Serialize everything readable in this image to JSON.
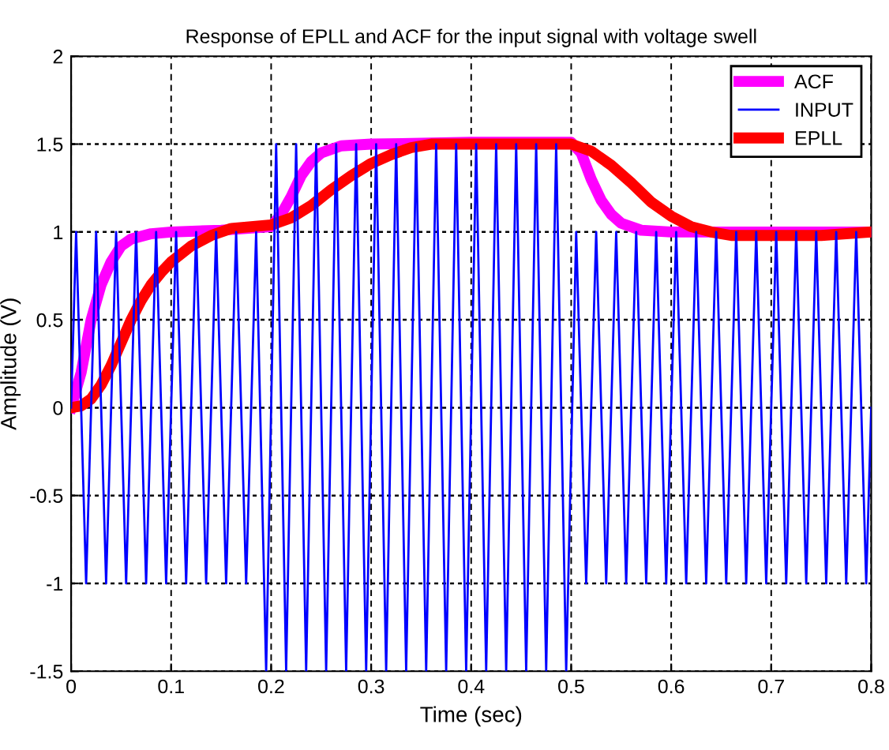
{
  "chart_data": {
    "type": "line",
    "title": "Response of EPLL and ACF for the input signal with voltage swell",
    "xlabel": "Time (sec)",
    "ylabel": "Amplitude (V)",
    "xlim": [
      0,
      0.8
    ],
    "ylim": [
      -1.5,
      2
    ],
    "xticks": [
      0,
      0.1,
      0.2,
      0.3,
      0.4,
      0.5,
      0.6,
      0.7,
      0.8
    ],
    "yticks": [
      -1.5,
      -1,
      -0.5,
      0,
      0.5,
      1,
      1.5,
      2
    ],
    "grid": true,
    "legend": "top right",
    "line_style": "solid",
    "marker": "none",
    "series": [
      {
        "name": "ACF",
        "color": "#ff00ff",
        "x": [
          0,
          0.01,
          0.02,
          0.03,
          0.04,
          0.05,
          0.06,
          0.08,
          0.1,
          0.15,
          0.2,
          0.21,
          0.22,
          0.23,
          0.24,
          0.25,
          0.27,
          0.3,
          0.4,
          0.5,
          0.51,
          0.52,
          0.53,
          0.54,
          0.55,
          0.57,
          0.6,
          0.7,
          0.8
        ],
        "values": [
          0,
          0.2,
          0.5,
          0.7,
          0.83,
          0.92,
          0.96,
          0.99,
          1.0,
          1.01,
          1.03,
          1.1,
          1.2,
          1.32,
          1.4,
          1.45,
          1.49,
          1.5,
          1.51,
          1.51,
          1.45,
          1.3,
          1.18,
          1.1,
          1.05,
          1.01,
          1.0,
          1.0,
          1.0
        ]
      },
      {
        "name": "INPUT",
        "color": "#0000ff",
        "x": [
          0,
          0.005,
          0.015,
          0.025,
          0.035,
          0.045,
          0.055,
          0.065,
          0.075,
          0.085,
          0.095,
          0.105,
          0.115,
          0.125,
          0.135,
          0.145,
          0.155,
          0.165,
          0.175,
          0.185,
          0.195,
          0.205,
          0.215,
          0.225,
          0.235,
          0.245,
          0.255,
          0.265,
          0.275,
          0.285,
          0.295,
          0.305,
          0.315,
          0.325,
          0.335,
          0.345,
          0.355,
          0.365,
          0.375,
          0.385,
          0.395,
          0.405,
          0.415,
          0.425,
          0.435,
          0.445,
          0.455,
          0.465,
          0.475,
          0.485,
          0.495,
          0.505,
          0.515,
          0.525,
          0.535,
          0.545,
          0.555,
          0.565,
          0.575,
          0.585,
          0.595,
          0.605,
          0.615,
          0.625,
          0.635,
          0.645,
          0.655,
          0.665,
          0.675,
          0.685,
          0.695,
          0.705,
          0.715,
          0.725,
          0.735,
          0.745,
          0.755,
          0.765,
          0.775,
          0.785,
          0.795,
          0.8
        ],
        "values": [
          0,
          1,
          -1,
          1,
          -1,
          1,
          -1,
          1,
          -1,
          1,
          -1,
          1,
          -1,
          1,
          -1,
          1,
          -1,
          1,
          -1,
          1,
          -1.5,
          1.5,
          -1.5,
          1.5,
          -1.5,
          1.5,
          -1.5,
          1.5,
          -1.5,
          1.5,
          -1.5,
          1.5,
          -1.5,
          1.5,
          -1.5,
          1.5,
          -1.5,
          1.5,
          -1.5,
          1.5,
          -1.5,
          1.5,
          -1.5,
          1.5,
          -1.5,
          1.5,
          -1.5,
          1.5,
          -1.5,
          1.5,
          -1.5,
          1,
          -1,
          1,
          -1,
          1,
          -1,
          1,
          -1,
          1,
          -1,
          1,
          -1,
          1,
          -1,
          1,
          -1,
          1,
          -1,
          1,
          -1,
          1,
          -1,
          1,
          -1,
          1,
          -1,
          1,
          -1,
          1,
          -1,
          0
        ]
      },
      {
        "name": "EPLL",
        "color": "#ff0000",
        "x": [
          0,
          0.01,
          0.02,
          0.03,
          0.04,
          0.05,
          0.06,
          0.07,
          0.08,
          0.09,
          0.1,
          0.12,
          0.14,
          0.16,
          0.18,
          0.2,
          0.22,
          0.24,
          0.26,
          0.28,
          0.3,
          0.32,
          0.34,
          0.36,
          0.4,
          0.5,
          0.52,
          0.54,
          0.56,
          0.58,
          0.6,
          0.62,
          0.64,
          0.66,
          0.7,
          0.75,
          0.8
        ],
        "values": [
          0,
          0.01,
          0.05,
          0.13,
          0.24,
          0.37,
          0.5,
          0.61,
          0.7,
          0.77,
          0.83,
          0.92,
          0.98,
          1.02,
          1.03,
          1.04,
          1.08,
          1.15,
          1.24,
          1.32,
          1.39,
          1.44,
          1.48,
          1.5,
          1.5,
          1.5,
          1.46,
          1.38,
          1.28,
          1.17,
          1.09,
          1.03,
          1.0,
          0.98,
          0.98,
          0.98,
          1.0
        ]
      }
    ]
  }
}
